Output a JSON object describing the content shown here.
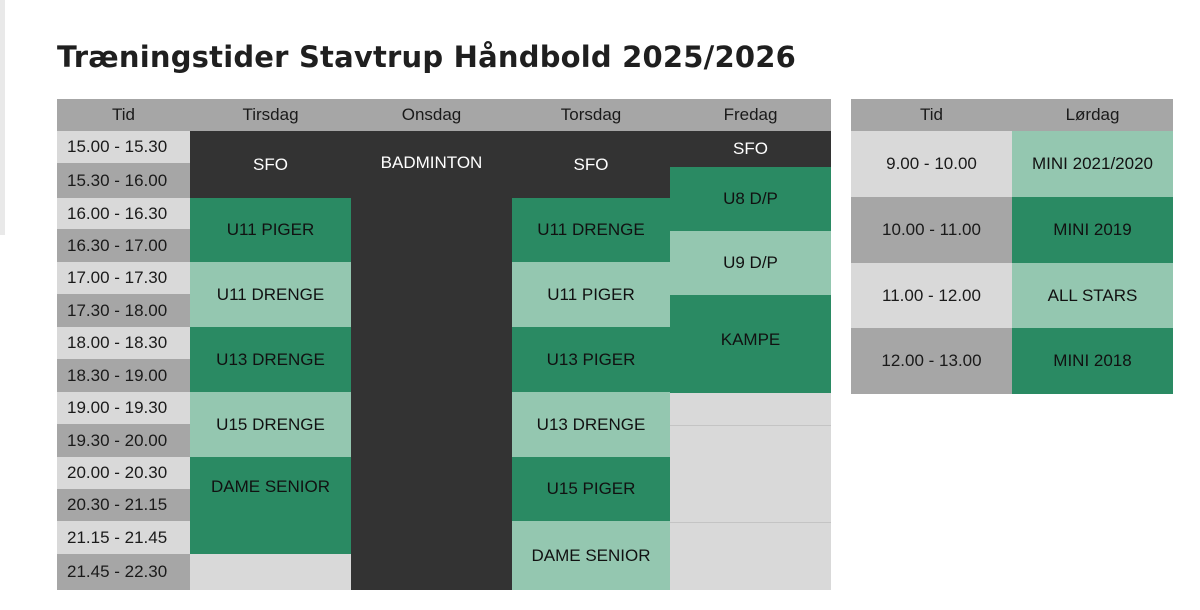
{
  "title": "Træningstider Stavtrup Håndbold 2025/2026",
  "weekday_table": {
    "headers": [
      "Tid",
      "Tirsdag",
      "Onsdag",
      "Torsdag",
      "Fredag"
    ],
    "times": [
      "15.00 - 15.30",
      "15.30 - 16.00",
      "16.00 - 16.30",
      "16.30 - 17.00",
      "17.00 - 17.30",
      "17.30 - 18.00",
      "18.00 - 18.30",
      "18.30 - 19.00",
      "19.00 - 19.30",
      "19.30 - 20.00",
      "20.00 - 20.30",
      "20.30 - 21.15",
      "21.15 - 21.45",
      "21.45 - 22.30"
    ],
    "tirsdag": [
      "SFO",
      "U11 PIGER",
      "U11 DRENGE",
      "U13 DRENGE",
      "U15 DRENGE",
      "DAME SENIOR"
    ],
    "onsdag": [
      "BADMINTON"
    ],
    "torsdag": [
      "SFO",
      "U11 DRENGE",
      "U11 PIGER",
      "U13 PIGER",
      "U13 DRENGE",
      "U15 PIGER",
      "DAME SENIOR"
    ],
    "fredag": [
      "SFO",
      "U8 D/P",
      "U9 D/P",
      "KAMPE"
    ]
  },
  "saturday_table": {
    "headers": [
      "Tid",
      "Lørdag"
    ],
    "rows": [
      {
        "time": "9.00 - 10.00",
        "team": "MINI 2021/2020"
      },
      {
        "time": "10.00 - 11.00",
        "team": "MINI 2019"
      },
      {
        "time": "11.00 - 12.00",
        "team": "ALL STARS"
      },
      {
        "time": "12.00 - 13.00",
        "team": "MINI 2018"
      }
    ]
  },
  "colors": {
    "header_grey": "#a6a6a6",
    "light_grey": "#d9d9d9",
    "dark": "#333333",
    "green": "#2a8a63",
    "mint": "#94c7b0"
  }
}
